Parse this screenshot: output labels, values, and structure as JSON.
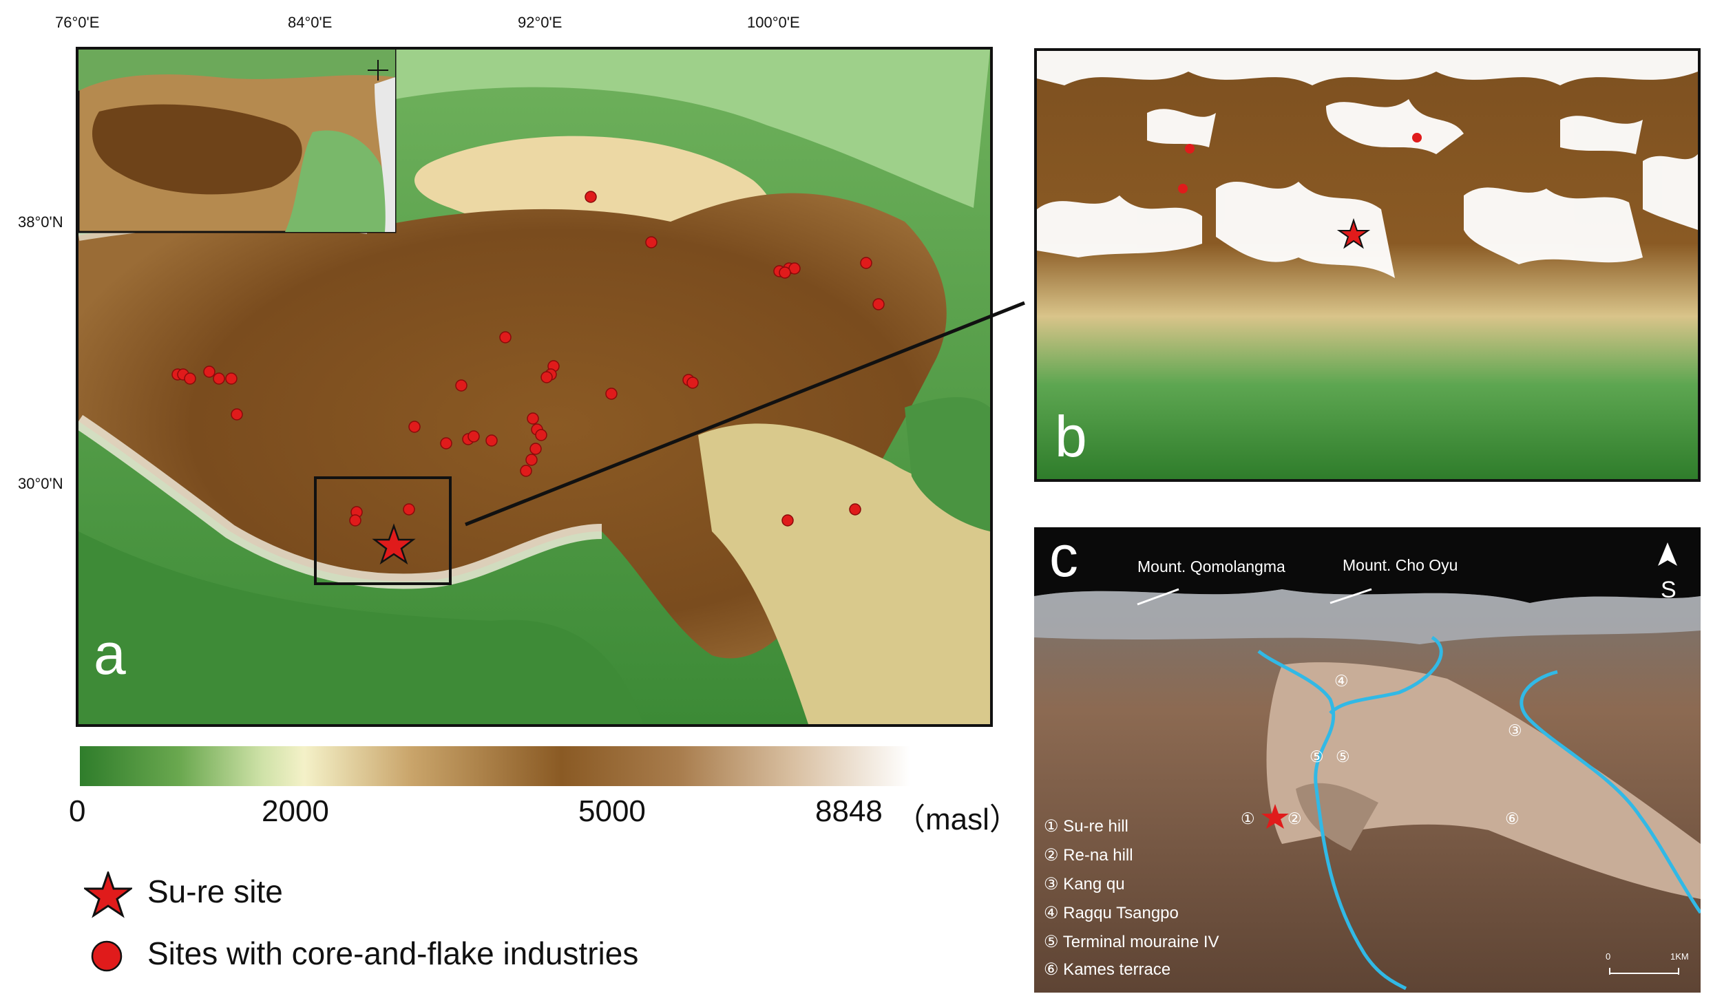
{
  "panel_a": {
    "letter": "a",
    "lon_ticks": [
      "76°0'E",
      "84°0'E",
      "92°0'E",
      "100°0'E"
    ],
    "lat_ticks": [
      "38°0'N",
      "30°0'N"
    ]
  },
  "panel_b": {
    "letter": "b"
  },
  "panel_c": {
    "letter": "c",
    "mount_labels": [
      "Mount. Qomolangma",
      "Mount. Cho Oyu"
    ],
    "north_arrow": "S",
    "numbers": [
      "④",
      "③",
      "⑤",
      "⑤",
      "①",
      "②",
      "⑥"
    ],
    "key": [
      "① Su-re hill",
      "② Re-na hill",
      "③ Kang qu",
      "④ Ragqu Tsangpo",
      "⑤ Terminal mouraine IV",
      "⑥ Kames terrace"
    ],
    "scale_ticks": [
      "0",
      "1KM"
    ]
  },
  "elevation_scale": {
    "labels": [
      "0",
      "2000",
      "5000",
      "8848"
    ],
    "unit": "（masl）",
    "colors": [
      "#2f7d2b",
      "#f4f1c8",
      "#8a5a24",
      "#ffffff"
    ]
  },
  "legend": {
    "star_label": "Su-re site",
    "dot_label": "Sites with core-and-flake industries",
    "star_color": "#e01b1b",
    "dot_color": "#e01b1b"
  }
}
